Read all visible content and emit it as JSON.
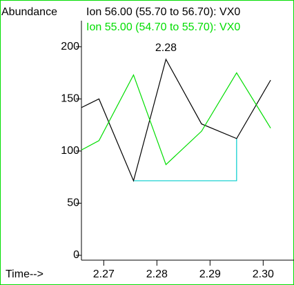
{
  "chart_data": {
    "type": "line",
    "ylabel": "Abundance",
    "xlabel": "Time-->",
    "xlim": [
      2.2658,
      2.3058
    ],
    "xticks": [
      2.27,
      2.28,
      2.29,
      {
        "value": 2.3,
        "label": "2.30"
      }
    ],
    "ylim": [
      0,
      225
    ],
    "yticks": [
      0,
      50,
      100,
      150,
      200
    ],
    "series": [
      {
        "name": "Ion  56.00 (55.70 to 56.70): VX0",
        "color": "#000000",
        "x": [
          2.2658,
          2.2691,
          2.2756,
          2.2817,
          2.2884,
          2.295,
          2.3014
        ],
        "values": [
          141.7,
          150,
          71.5,
          188,
          126,
          112,
          168
        ]
      },
      {
        "name": "Ion  55.00 (54.70 to 55.70): VX0",
        "color": "#00dd00",
        "x": [
          2.2658,
          2.2691,
          2.2756,
          2.2817,
          2.2884,
          2.295,
          2.3014
        ],
        "values": [
          101,
          110,
          173,
          87,
          119,
          175,
          122
        ]
      }
    ],
    "baseline": {
      "color": "#00cccc",
      "x": [
        2.2756,
        2.295,
        2.295
      ],
      "values": [
        71.5,
        71.5,
        112
      ]
    },
    "annotations": [
      {
        "text": "2.28",
        "x": 2.2817,
        "y": 188
      }
    ]
  }
}
